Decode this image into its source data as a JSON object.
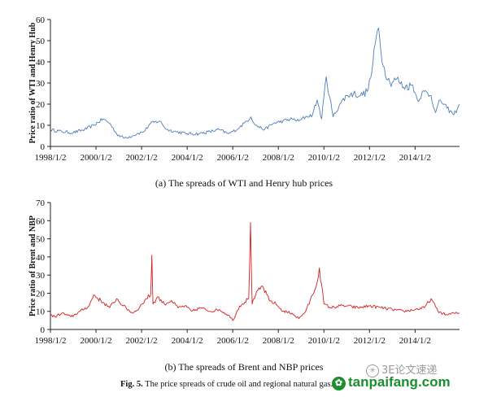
{
  "figure_caption": {
    "label": "Fig. 5.",
    "text": "The price spreads of crude oil and regional natural gas."
  },
  "watermark": {
    "brand_text": "tanpaifang.com",
    "wechat_text": "3E论文速递"
  },
  "chart_data": [
    {
      "type": "line",
      "caption": "(a) The spreads of WTI and Henry hub prices",
      "ylabel": "Price ratio of WTI and Henry Hub",
      "xlabel": "",
      "color": "#4f7fb6",
      "ylim": [
        0,
        60
      ],
      "yticks": [
        0,
        10,
        20,
        30,
        40,
        50,
        60
      ],
      "xlim": [
        1998.0,
        2015.95
      ],
      "xticks": [
        1998.0,
        2000.0,
        2002.0,
        2004.0,
        2006.0,
        2008.0,
        2010.0,
        2012.0,
        2014.0
      ],
      "xticklabels": [
        "1998/1/2",
        "2000/1/2",
        "2002/1/2",
        "2004/1/2",
        "2006/1/2",
        "2008/1/2",
        "2010/1/2",
        "2012/1/2",
        "2014/1/2"
      ],
      "series": [
        {
          "name": "WTI/Henry Hub",
          "x": [
            1998.0,
            1998.5,
            1999.0,
            1999.5,
            1999.9,
            2000.3,
            2000.6,
            2000.9,
            2001.2,
            2001.6,
            2001.8,
            2002.1,
            2002.4,
            2002.8,
            2003.1,
            2003.5,
            2004.0,
            2004.5,
            2005.0,
            2005.4,
            2005.8,
            2006.0,
            2006.3,
            2006.5,
            2006.8,
            2007.0,
            2007.4,
            2007.8,
            2008.2,
            2008.6,
            2008.9,
            2009.2,
            2009.5,
            2009.7,
            2009.9,
            2010.1,
            2010.4,
            2010.7,
            2011.0,
            2011.3,
            2011.6,
            2011.9,
            2012.1,
            2012.3,
            2012.4,
            2012.6,
            2012.9,
            2013.2,
            2013.5,
            2013.9,
            2014.1,
            2014.4,
            2014.7,
            2014.9,
            2015.1,
            2015.4,
            2015.7,
            2015.95
          ],
          "values": [
            8,
            7,
            6.5,
            8,
            10,
            13,
            11,
            6,
            4,
            5,
            6,
            7,
            11,
            12,
            8,
            7,
            6,
            6,
            7,
            8,
            6,
            7,
            9,
            11,
            14,
            10,
            8,
            11,
            12,
            13,
            12,
            14,
            15,
            22,
            13,
            33,
            14,
            20,
            24,
            25,
            24,
            26,
            35,
            52,
            56,
            38,
            30,
            32,
            28,
            29,
            22,
            26,
            24,
            16,
            22,
            18,
            15,
            20
          ]
        }
      ]
    },
    {
      "type": "line",
      "caption": "(b) The spreads of Brent and NBP prices",
      "ylabel": "Price ratio of Brent and NBP",
      "xlabel": "",
      "color": "#d42020",
      "ylim": [
        0,
        70
      ],
      "yticks": [
        0,
        10,
        20,
        30,
        40,
        50,
        60,
        70
      ],
      "xlim": [
        1998.0,
        2015.95
      ],
      "xticks": [
        1998.0,
        2000.0,
        2002.0,
        2004.0,
        2006.0,
        2008.0,
        2010.0,
        2012.0,
        2014.0
      ],
      "xticklabels": [
        "1998/1/2",
        "2000/1/2",
        "2002/1/2",
        "2004/1/2",
        "2006/1/2",
        "2008/1/2",
        "2010/1/2",
        "2012/1/2",
        "2014/1/2"
      ],
      "series": [
        {
          "name": "Brent/NBP",
          "x": [
            1998.0,
            1998.2,
            1998.5,
            1998.9,
            1999.3,
            1999.7,
            1999.9,
            2000.3,
            2000.6,
            2000.9,
            2001.2,
            2001.6,
            2001.9,
            2002.2,
            2002.4,
            2002.45,
            2002.5,
            2002.7,
            2003.0,
            2003.3,
            2003.6,
            2003.9,
            2004.2,
            2004.6,
            2005.0,
            2005.4,
            2005.8,
            2006.0,
            2006.3,
            2006.7,
            2006.78,
            2006.85,
            2007.0,
            2007.3,
            2007.6,
            2007.9,
            2008.2,
            2008.6,
            2008.9,
            2009.2,
            2009.5,
            2009.7,
            2009.8,
            2010.0,
            2010.3,
            2010.7,
            2011.0,
            2011.5,
            2012.0,
            2012.5,
            2013.0,
            2013.5,
            2014.0,
            2014.4,
            2014.7,
            2015.0,
            2015.4,
            2015.7,
            2015.95
          ],
          "values": [
            8,
            7,
            9,
            7,
            10,
            13,
            19,
            15,
            12,
            17,
            13,
            9,
            12,
            17,
            19,
            41,
            14,
            18,
            14,
            16,
            12,
            13,
            10,
            12,
            10,
            11,
            8,
            5,
            13,
            17,
            59,
            14,
            19,
            24,
            16,
            14,
            10,
            9,
            6,
            10,
            19,
            26,
            34,
            14,
            12,
            13,
            13,
            12,
            13,
            12,
            11,
            10,
            11,
            12,
            17,
            10,
            8,
            9,
            9
          ]
        }
      ]
    }
  ]
}
